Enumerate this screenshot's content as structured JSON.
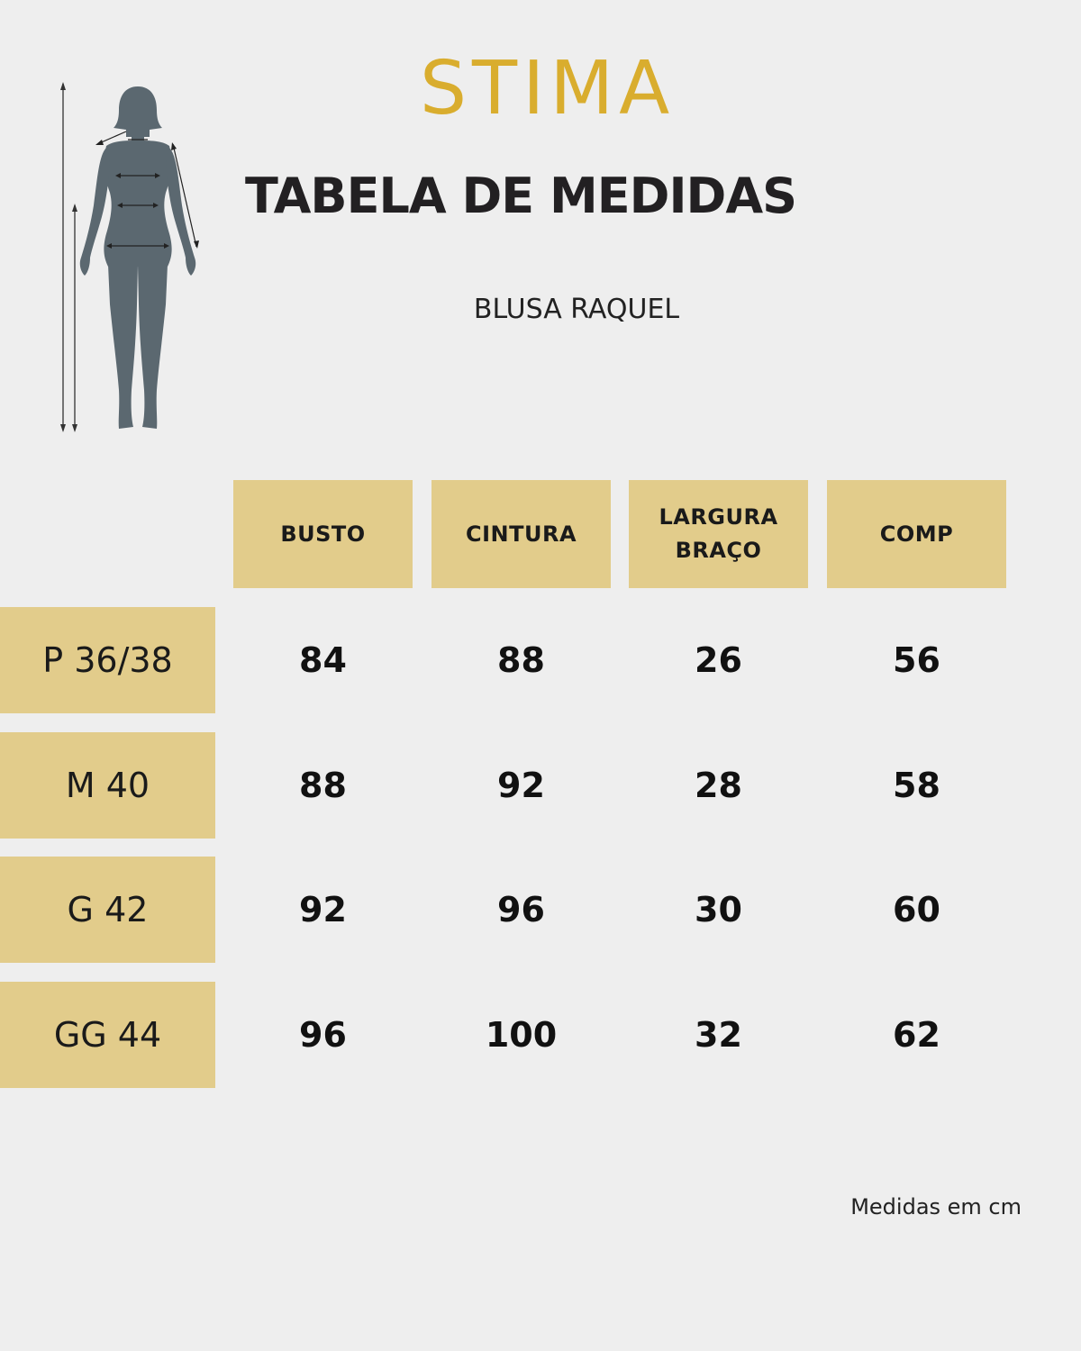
{
  "colors": {
    "background": "#eeeeee",
    "accent": "#e2cc8b",
    "logo": "#d9ad2e",
    "figure": "#5b6870"
  },
  "brand": {
    "logo_text": "STIMA"
  },
  "title": "TABELA DE MEDIDAS",
  "product_name": "BLUSA RAQUEL",
  "figure_icon": "female-body-measurement-figure-icon",
  "table": {
    "columns": [
      "BUSTO",
      "CINTURA",
      "LARGURA\nBRAÇO",
      "COMP"
    ],
    "rows": [
      {
        "size": "P 36/38",
        "values": [
          "84",
          "88",
          "26",
          "56"
        ]
      },
      {
        "size": "M 40",
        "values": [
          "88",
          "92",
          "28",
          "58"
        ]
      },
      {
        "size": "G 42",
        "values": [
          "92",
          "96",
          "30",
          "60"
        ]
      },
      {
        "size": "GG 44",
        "values": [
          "96",
          "100",
          "32",
          "62"
        ]
      }
    ]
  },
  "footnote": "Medidas em cm"
}
